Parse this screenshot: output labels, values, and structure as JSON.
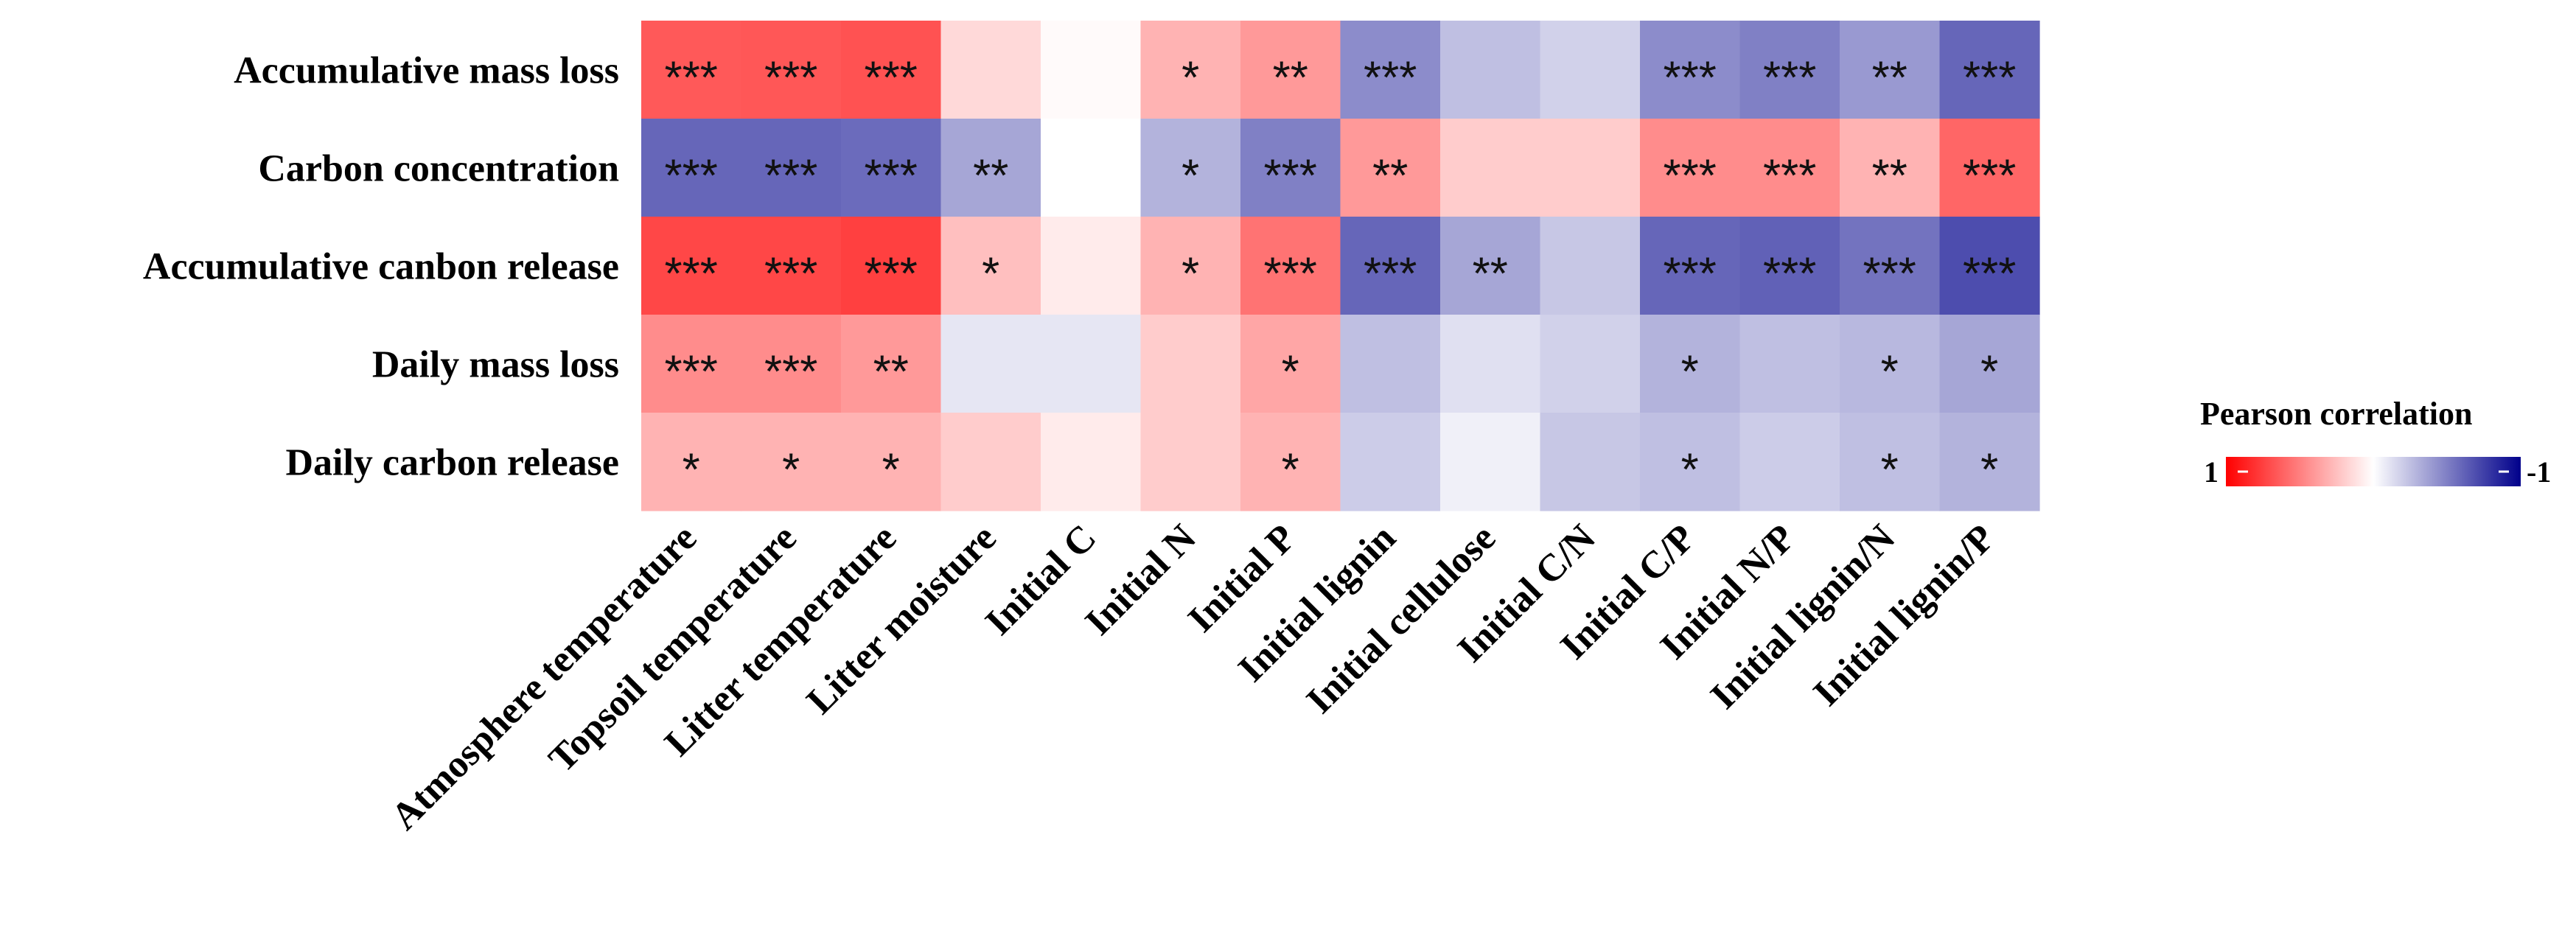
{
  "chart_data": {
    "type": "heatmap",
    "title": "",
    "rows": [
      "Accumulative mass loss",
      "Carbon concentration",
      "Accumulative canbon release",
      "Daily mass loss",
      "Daily carbon release"
    ],
    "columns": [
      "Atmosphere temperature",
      "Topsoil temperature",
      "Litter temperature",
      "Litter moisture",
      "Initial C",
      "Initial N",
      "Initial P",
      "Initial lignin",
      "Initial cellulose",
      "Initial C/N",
      "Initial C/P",
      "Initial N/P",
      "Initial lignin/N",
      "Initial lignin/P"
    ],
    "values": [
      [
        0.65,
        0.66,
        0.68,
        0.15,
        0.02,
        0.3,
        0.4,
        -0.45,
        -0.25,
        -0.18,
        -0.45,
        -0.5,
        -0.4,
        -0.6
      ],
      [
        -0.6,
        -0.6,
        -0.58,
        -0.35,
        0.0,
        -0.3,
        -0.5,
        0.4,
        0.2,
        0.2,
        0.45,
        0.45,
        0.3,
        0.6
      ],
      [
        0.72,
        0.72,
        0.75,
        0.25,
        0.08,
        0.3,
        0.55,
        -0.6,
        -0.35,
        -0.22,
        -0.6,
        -0.62,
        -0.55,
        -0.7
      ],
      [
        0.45,
        0.45,
        0.4,
        -0.1,
        -0.1,
        0.2,
        0.35,
        -0.25,
        -0.12,
        -0.18,
        -0.3,
        -0.25,
        -0.28,
        -0.35
      ],
      [
        0.3,
        0.3,
        0.3,
        0.2,
        0.08,
        0.2,
        0.3,
        -0.2,
        -0.06,
        -0.22,
        -0.25,
        -0.2,
        -0.25,
        -0.3
      ]
    ],
    "significance": [
      [
        "***",
        "***",
        "***",
        "",
        "",
        "*",
        "**",
        "***",
        "",
        "",
        "***",
        "***",
        "**",
        "***"
      ],
      [
        "***",
        "***",
        "***",
        "**",
        "",
        "*",
        "***",
        "**",
        "",
        "",
        "***",
        "***",
        "**",
        "***"
      ],
      [
        "***",
        "***",
        "***",
        "*",
        "",
        "*",
        "***",
        "***",
        "**",
        "",
        "***",
        "***",
        "***",
        "***"
      ],
      [
        "***",
        "***",
        "**",
        "",
        "",
        "",
        "*",
        "",
        "",
        "",
        "*",
        "",
        "*",
        "*"
      ],
      [
        "*",
        "*",
        "*",
        "",
        "",
        "",
        "*",
        "",
        "",
        "",
        "*",
        "",
        "*",
        "*"
      ]
    ],
    "color_scale": {
      "min": -1,
      "max": 1,
      "high_color": "#ff0000",
      "mid_color": "#ffffff",
      "low_color": "#00008b"
    },
    "legend": {
      "title": "Pearson correlation",
      "high_label": "1",
      "low_label": "-1",
      "position": "right"
    }
  }
}
